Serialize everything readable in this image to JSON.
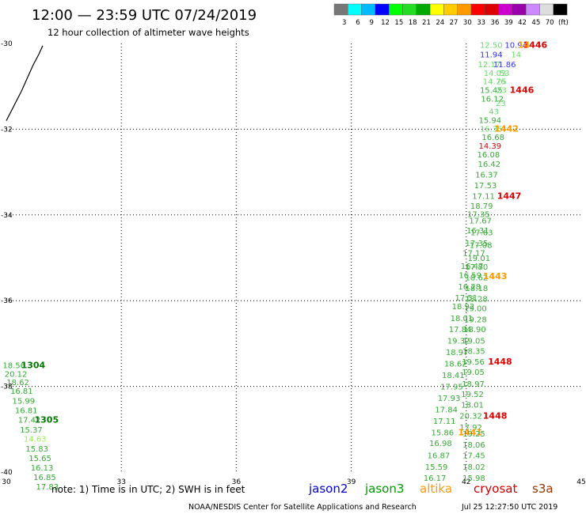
{
  "header": {
    "title": "12:00  —  23:59  UTC  07/24/2019",
    "subtitle": "12 hour collection of altimeter wave heights"
  },
  "scale": {
    "labels": [
      "3",
      "6",
      "9",
      "12",
      "15",
      "18",
      "21",
      "24",
      "27",
      "30",
      "33",
      "36",
      "39",
      "42",
      "45",
      "70",
      "(ft)"
    ],
    "colors": [
      "#777777",
      "#00ffff",
      "#00bbff",
      "#0000ff",
      "#00ff00",
      "#22dd22",
      "#00aa00",
      "#ffff00",
      "#ffcc00",
      "#ff9900",
      "#ff0000",
      "#dd0000",
      "#cc00cc",
      "#9900aa",
      "#cc88ff",
      "#dddddd",
      "#000000"
    ]
  },
  "axes": {
    "x_ticks": [
      "30",
      "33",
      "36",
      "39",
      "42",
      "45"
    ],
    "y_ticks": [
      "-30",
      "-32",
      "-34",
      "-36",
      "-38",
      "-40"
    ]
  },
  "legend": [
    {
      "label": "jason2",
      "color": "#0000cc"
    },
    {
      "label": "jason3",
      "color": "#009900"
    },
    {
      "label": "altika",
      "color": "#ff9900"
    },
    {
      "label": "cryosat",
      "color": "#cc0000"
    },
    {
      "label": "s3a",
      "color": "#993300"
    }
  ],
  "footer": {
    "note": "note:  1)  Time is in UTC;  2)  SWH is in feet",
    "credit": "NOAA/NESDIS Center for Satellite Applications and Research",
    "timestamp": "Jul 25 12:27:50 UTC 2019"
  },
  "chart_data": {
    "type": "scatter",
    "title": "12:00 — 23:59 UTC 07/24/2019",
    "subtitle": "12 hour collection of altimeter wave heights",
    "xlim": [
      30,
      45
    ],
    "ylim": [
      -40,
      -30
    ],
    "grid": true,
    "legend_position": "bottom",
    "coastline": [
      [
        30.0,
        -31.8
      ],
      [
        30.2,
        -31.45
      ],
      [
        30.4,
        -31.1
      ],
      [
        30.55,
        -30.8
      ],
      [
        30.7,
        -30.5
      ],
      [
        30.85,
        -30.25
      ],
      [
        30.95,
        -30.05
      ]
    ],
    "points": [
      {
        "x": 42.65,
        "y": -30.03,
        "text": "12.50",
        "color": "#66dd66",
        "bold": false
      },
      {
        "x": 43.3,
        "y": -30.03,
        "text": "10.94",
        "color": "#3333ee",
        "bold": false
      },
      {
        "x": 43.8,
        "y": -30.03,
        "text": "1446",
        "color": "#dd0000",
        "bold": true
      },
      {
        "x": 43.5,
        "y": -30.03,
        "text": "14",
        "color": "#ff9900",
        "bold": true
      },
      {
        "x": 42.65,
        "y": -30.25,
        "text": "11.94",
        "color": "#3333ee",
        "bold": false
      },
      {
        "x": 43.3,
        "y": -30.25,
        "text": "14",
        "color": "#66dd66",
        "bold": false
      },
      {
        "x": 42.6,
        "y": -30.48,
        "text": "12.17",
        "color": "#66dd66",
        "bold": false
      },
      {
        "x": 43.0,
        "y": -30.48,
        "text": "11.86",
        "color": "#3333ee",
        "bold": false
      },
      {
        "x": 42.75,
        "y": -30.68,
        "text": "14.03",
        "color": "#66dd66",
        "bold": false
      },
      {
        "x": 43.0,
        "y": -30.68,
        "text": "53",
        "color": "#66dd66",
        "bold": false
      },
      {
        "x": 42.73,
        "y": -30.88,
        "text": "14.76",
        "color": "#66dd66",
        "bold": false
      },
      {
        "x": 42.92,
        "y": -30.88,
        "text": "25",
        "color": "#66dd66",
        "bold": false
      },
      {
        "x": 42.65,
        "y": -31.08,
        "text": "15.45",
        "color": "#33aa33",
        "bold": false
      },
      {
        "x": 42.92,
        "y": -31.08,
        "text": "23",
        "color": "#66dd66",
        "bold": false
      },
      {
        "x": 43.45,
        "y": -31.08,
        "text": "1446",
        "color": "#dd0000",
        "bold": true
      },
      {
        "x": 42.68,
        "y": -31.28,
        "text": "16.12",
        "color": "#33aa33",
        "bold": false
      },
      {
        "x": 42.9,
        "y": -31.38,
        "text": "23",
        "color": "#66dd66",
        "bold": false
      },
      {
        "x": 42.72,
        "y": -31.58,
        "text": "43",
        "color": "#66dd66",
        "bold": false
      },
      {
        "x": 42.62,
        "y": -31.78,
        "text": "15.94",
        "color": "#33aa33",
        "bold": false
      },
      {
        "x": 42.65,
        "y": -31.98,
        "text": "16.35",
        "color": "#66dd66",
        "bold": false
      },
      {
        "x": 43.05,
        "y": -31.98,
        "text": "1442",
        "color": "#ff9900",
        "bold": true
      },
      {
        "x": 42.7,
        "y": -32.18,
        "text": "16.68",
        "color": "#33aa33",
        "bold": false
      },
      {
        "x": 42.62,
        "y": -32.38,
        "text": "14.39",
        "color": "#dd0000",
        "bold": false
      },
      {
        "x": 42.58,
        "y": -32.58,
        "text": "16.08",
        "color": "#33aa33",
        "bold": false
      },
      {
        "x": 42.6,
        "y": -32.8,
        "text": "16.42",
        "color": "#33aa33",
        "bold": false
      },
      {
        "x": 42.53,
        "y": -33.05,
        "text": "16.37",
        "color": "#33aa33",
        "bold": false
      },
      {
        "x": 42.5,
        "y": -33.3,
        "text": "17.53",
        "color": "#33aa33",
        "bold": false
      },
      {
        "x": 42.45,
        "y": -33.55,
        "text": "17.11",
        "color": "#33aa33",
        "bold": false
      },
      {
        "x": 43.12,
        "y": -33.55,
        "text": "1447",
        "color": "#dd0000",
        "bold": true
      },
      {
        "x": 42.4,
        "y": -33.78,
        "text": "18.79",
        "color": "#33aa33",
        "bold": false
      },
      {
        "x": 42.32,
        "y": -33.98,
        "text": "17.35",
        "color": "#33aa33",
        "bold": false
      },
      {
        "x": 42.37,
        "y": -34.12,
        "text": "17.67",
        "color": "#33aa33",
        "bold": false
      },
      {
        "x": 42.3,
        "y": -34.35,
        "text": "16.31",
        "color": "#33aa33",
        "bold": false
      },
      {
        "x": 42.4,
        "y": -34.4,
        "text": "17.63",
        "color": "#33aa33",
        "bold": false
      },
      {
        "x": 42.27,
        "y": -34.65,
        "text": "17.35",
        "color": "#33aa33",
        "bold": false
      },
      {
        "x": 42.38,
        "y": -34.7,
        "text": "17.08",
        "color": "#33aa33",
        "bold": false
      },
      {
        "x": 42.2,
        "y": -34.88,
        "text": "17.17",
        "color": "#33aa33",
        "bold": false
      },
      {
        "x": 42.33,
        "y": -35.0,
        "text": "19.01",
        "color": "#33aa33",
        "bold": false
      },
      {
        "x": 42.15,
        "y": -35.18,
        "text": "16.47",
        "color": "#33aa33",
        "bold": false
      },
      {
        "x": 42.27,
        "y": -35.2,
        "text": "17.80",
        "color": "#33aa33",
        "bold": false
      },
      {
        "x": 42.1,
        "y": -35.4,
        "text": "16.59",
        "color": "#33aa33",
        "bold": false
      },
      {
        "x": 42.27,
        "y": -35.45,
        "text": "18.62",
        "color": "#33aa33",
        "bold": false
      },
      {
        "x": 42.75,
        "y": -35.42,
        "text": "1443",
        "color": "#ff9900",
        "bold": true
      },
      {
        "x": 42.08,
        "y": -35.66,
        "text": "16.28",
        "color": "#33aa33",
        "bold": false
      },
      {
        "x": 42.27,
        "y": -35.7,
        "text": "18.18",
        "color": "#33aa33",
        "bold": false
      },
      {
        "x": 42.0,
        "y": -35.92,
        "text": "17.51",
        "color": "#33aa33",
        "bold": false
      },
      {
        "x": 42.26,
        "y": -35.95,
        "text": "18.28",
        "color": "#33aa33",
        "bold": false
      },
      {
        "x": 41.92,
        "y": -36.13,
        "text": "18.92",
        "color": "#33aa33",
        "bold": false
      },
      {
        "x": 42.24,
        "y": -36.17,
        "text": "19.00",
        "color": "#33aa33",
        "bold": false
      },
      {
        "x": 41.88,
        "y": -36.4,
        "text": "18.01",
        "color": "#33aa33",
        "bold": false
      },
      {
        "x": 42.24,
        "y": -36.43,
        "text": "19.28",
        "color": "#33aa33",
        "bold": false
      },
      {
        "x": 41.84,
        "y": -36.66,
        "text": "17.84",
        "color": "#33aa33",
        "bold": false
      },
      {
        "x": 42.22,
        "y": -36.66,
        "text": "18.90",
        "color": "#33aa33",
        "bold": false
      },
      {
        "x": 41.8,
        "y": -36.93,
        "text": "19.32",
        "color": "#33aa33",
        "bold": false
      },
      {
        "x": 42.2,
        "y": -36.93,
        "text": "19.05",
        "color": "#33aa33",
        "bold": false
      },
      {
        "x": 41.76,
        "y": -37.2,
        "text": "18.97",
        "color": "#33aa33",
        "bold": false
      },
      {
        "x": 42.2,
        "y": -37.17,
        "text": "18.35",
        "color": "#33aa33",
        "bold": false
      },
      {
        "x": 41.72,
        "y": -37.46,
        "text": "18.62",
        "color": "#33aa33",
        "bold": false
      },
      {
        "x": 42.18,
        "y": -37.42,
        "text": "19.56",
        "color": "#33aa33",
        "bold": false
      },
      {
        "x": 42.88,
        "y": -37.42,
        "text": "1448",
        "color": "#dd0000",
        "bold": true
      },
      {
        "x": 41.66,
        "y": -37.73,
        "text": "18.41",
        "color": "#33aa33",
        "bold": false
      },
      {
        "x": 42.18,
        "y": -37.66,
        "text": "19.05",
        "color": "#33aa33",
        "bold": false
      },
      {
        "x": 41.62,
        "y": -38.0,
        "text": "17.95",
        "color": "#33aa33",
        "bold": false
      },
      {
        "x": 42.18,
        "y": -37.93,
        "text": "18.97",
        "color": "#33aa33",
        "bold": false
      },
      {
        "x": 41.55,
        "y": -38.27,
        "text": "17.93",
        "color": "#33aa33",
        "bold": false
      },
      {
        "x": 42.16,
        "y": -38.17,
        "text": "19.52",
        "color": "#33aa33",
        "bold": false
      },
      {
        "x": 41.48,
        "y": -38.53,
        "text": "17.84",
        "color": "#33aa33",
        "bold": false
      },
      {
        "x": 42.16,
        "y": -38.42,
        "text": "18.01",
        "color": "#33aa33",
        "bold": false
      },
      {
        "x": 41.43,
        "y": -38.8,
        "text": "17.11",
        "color": "#33aa33",
        "bold": false
      },
      {
        "x": 42.12,
        "y": -38.68,
        "text": "20.32",
        "color": "#33aa33",
        "bold": false
      },
      {
        "x": 42.75,
        "y": -38.68,
        "text": "1448",
        "color": "#dd0000",
        "bold": true
      },
      {
        "x": 41.38,
        "y": -39.07,
        "text": "15.86",
        "color": "#33aa33",
        "bold": false
      },
      {
        "x": 42.12,
        "y": -38.95,
        "text": "17.92",
        "color": "#33aa33",
        "bold": false
      },
      {
        "x": 42.1,
        "y": -39.07,
        "text": "1441",
        "color": "#ff9900",
        "bold": true
      },
      {
        "x": 42.2,
        "y": -39.1,
        "text": "19.25",
        "color": "#33aa33",
        "bold": false
      },
      {
        "x": 41.33,
        "y": -39.32,
        "text": "16.98",
        "color": "#33aa33",
        "bold": false
      },
      {
        "x": 42.2,
        "y": -39.35,
        "text": "18.06",
        "color": "#33aa33",
        "bold": false
      },
      {
        "x": 41.28,
        "y": -39.6,
        "text": "16.87",
        "color": "#33aa33",
        "bold": false
      },
      {
        "x": 42.2,
        "y": -39.6,
        "text": "17.45",
        "color": "#33aa33",
        "bold": false
      },
      {
        "x": 41.22,
        "y": -39.87,
        "text": "15.59",
        "color": "#33aa33",
        "bold": false
      },
      {
        "x": 42.2,
        "y": -39.87,
        "text": "18.02",
        "color": "#33aa33",
        "bold": false
      },
      {
        "x": 41.18,
        "y": -40.13,
        "text": "16.17",
        "color": "#33aa33",
        "bold": false
      },
      {
        "x": 42.2,
        "y": -40.13,
        "text": "15.98",
        "color": "#33aa33",
        "bold": false
      },
      {
        "x": 30.2,
        "y": -37.5,
        "text": "18.56",
        "color": "#33aa33",
        "bold": false
      },
      {
        "x": 30.7,
        "y": -37.5,
        "text": "1304",
        "color": "#007700",
        "bold": true
      },
      {
        "x": 30.25,
        "y": -37.7,
        "text": "20.12",
        "color": "#33aa33",
        "bold": false
      },
      {
        "x": 30.3,
        "y": -37.9,
        "text": "18.62",
        "color": "#33aa33",
        "bold": false
      },
      {
        "x": 30.4,
        "y": -38.1,
        "text": "16.81",
        "color": "#33aa33",
        "bold": false
      },
      {
        "x": 30.45,
        "y": -38.33,
        "text": "15.99",
        "color": "#33aa33",
        "bold": false
      },
      {
        "x": 30.52,
        "y": -38.55,
        "text": "16.81",
        "color": "#33aa33",
        "bold": false
      },
      {
        "x": 30.6,
        "y": -38.77,
        "text": "17.42",
        "color": "#33aa33",
        "bold": false
      },
      {
        "x": 31.05,
        "y": -38.77,
        "text": "1305",
        "color": "#007700",
        "bold": true
      },
      {
        "x": 30.65,
        "y": -39.0,
        "text": "15.37",
        "color": "#33aa33",
        "bold": false
      },
      {
        "x": 30.75,
        "y": -39.22,
        "text": "14.63",
        "color": "#99ee55",
        "bold": false
      },
      {
        "x": 30.8,
        "y": -39.45,
        "text": "15.83",
        "color": "#33aa33",
        "bold": false
      },
      {
        "x": 30.88,
        "y": -39.67,
        "text": "15.65",
        "color": "#33aa33",
        "bold": false
      },
      {
        "x": 30.93,
        "y": -39.89,
        "text": "16.13",
        "color": "#33aa33",
        "bold": false
      },
      {
        "x": 31.0,
        "y": -40.11,
        "text": "16.85",
        "color": "#33aa33",
        "bold": false
      },
      {
        "x": 31.07,
        "y": -40.33,
        "text": "17.83",
        "color": "#33aa33",
        "bold": false
      }
    ]
  }
}
